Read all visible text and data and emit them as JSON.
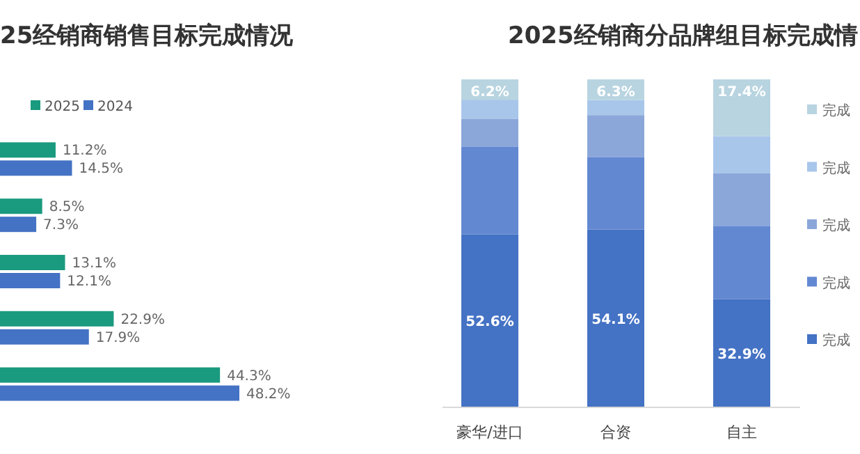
{
  "chart_data": [
    {
      "type": "bar",
      "orientation": "horizontal",
      "title": "25经销商销售目标完成情况",
      "categories": [
        null,
        null,
        null,
        null,
        null
      ],
      "legend": "top left",
      "series": [
        {
          "name": "2025",
          "color": "#1a9a7e",
          "values": [
            11.2,
            8.5,
            13.1,
            22.9,
            44.3
          ],
          "value_labels": [
            "11.2%",
            "8.5%",
            "13.1%",
            "22.9%",
            "44.3%"
          ]
        },
        {
          "name": "2024",
          "color": "#4472c4",
          "values": [
            14.5,
            7.3,
            12.1,
            17.9,
            48.2
          ],
          "value_labels": [
            "14.5%",
            "7.3%",
            "12.1%",
            "17.9%",
            "48.2%"
          ]
        }
      ]
    },
    {
      "type": "bar",
      "stacked": true,
      "title": "2025经销商分品牌组目标完成情",
      "categories": [
        "豪华/进口",
        "合资",
        "自主"
      ],
      "legend": "right",
      "series": [
        {
          "name": "完成",
          "color": "#4472c4",
          "values": [
            52.6,
            54.1,
            32.9
          ],
          "value_labels": [
            "52.6%",
            "54.1%",
            "32.9%"
          ]
        },
        {
          "name": "完成",
          "color": "#6388d2",
          "values": [
            26.9,
            22.2,
            22.2
          ],
          "value_labels": [
            null,
            null,
            null
          ]
        },
        {
          "name": "完成",
          "color": "#8ba7da",
          "values": [
            8.5,
            12.8,
            16.2
          ],
          "value_labels": [
            null,
            null,
            null
          ]
        },
        {
          "name": "完成",
          "color": "#a8c6ea",
          "values": [
            5.8,
            4.6,
            11.3
          ],
          "value_labels": [
            null,
            null,
            null
          ]
        },
        {
          "name": "完成",
          "color": "#b8d4e0",
          "values": [
            6.2,
            6.3,
            17.4
          ],
          "value_labels": [
            "6.2%",
            "6.3%",
            "17.4%"
          ]
        }
      ]
    }
  ]
}
